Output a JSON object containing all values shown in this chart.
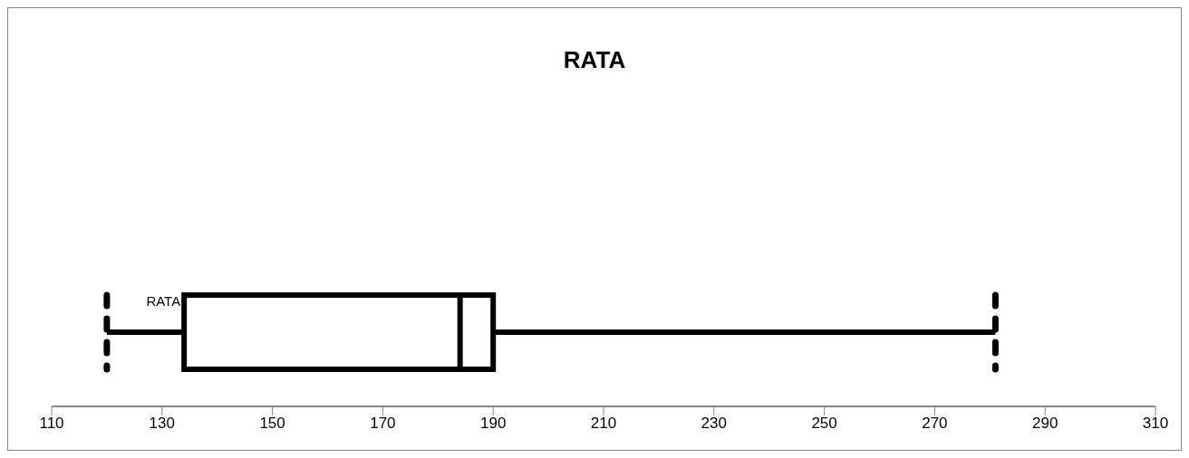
{
  "chart_data": {
    "type": "box",
    "title": "RATA",
    "orientation": "horizontal",
    "categories": [
      "RATA"
    ],
    "color": "#000000",
    "boxes": [
      {
        "low": 120,
        "q1": 134,
        "median": 184,
        "q3": 190,
        "high": 281
      }
    ],
    "xlim": [
      110,
      310
    ],
    "xticks": [
      110,
      130,
      150,
      170,
      190,
      210,
      230,
      250,
      270,
      290,
      310
    ]
  }
}
